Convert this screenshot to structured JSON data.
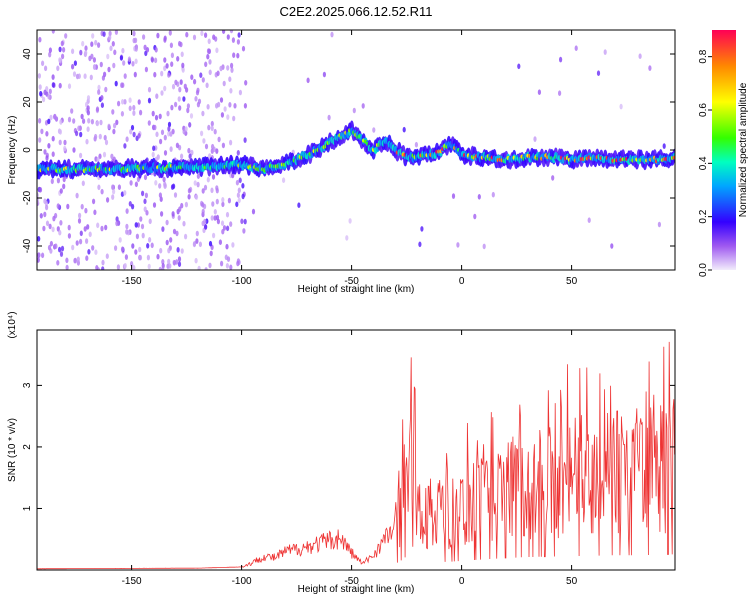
{
  "title": "C2E2.2025.066.12.52.R11",
  "colors": {
    "snr_line": "#ee3333",
    "axis": "#000000",
    "background": "#ffffff"
  },
  "chart_data": [
    {
      "type": "heatmap",
      "xlabel": "Height of straight line (km)",
      "ylabel": "Frequency (Hz)",
      "xlim": [
        -193,
        97
      ],
      "ylim": [
        -50,
        50
      ],
      "xticks": [
        -150,
        -100,
        -50,
        0,
        50
      ],
      "yticks": [
        -40,
        -20,
        0,
        20,
        40
      ],
      "colorbar": {
        "label": "Normalized spectral amplitude",
        "range": [
          0,
          0.9
        ],
        "ticks": [
          "0.0",
          "0.2",
          "0.4",
          "0.6",
          "0.8"
        ]
      },
      "ridge": {
        "x": [
          -193,
          -160,
          -120,
          -100,
          -90,
          -80,
          -70,
          -60,
          -50,
          -45,
          -40,
          -35,
          -30,
          -25,
          -20,
          -15,
          -10,
          -5,
          0,
          10,
          20,
          30,
          40,
          50,
          60,
          70,
          80,
          90,
          97
        ],
        "y": [
          -8,
          -8,
          -7,
          -6,
          -8,
          -6,
          -2,
          3,
          8,
          4,
          0,
          4,
          0,
          -3,
          -3,
          -2,
          -1,
          3,
          -2,
          -3,
          -4,
          -3,
          -3,
          -4,
          -3,
          -4,
          -4,
          -4,
          -3
        ]
      }
    },
    {
      "type": "line",
      "xlabel": "Height of straight line (km)",
      "ylabel": "SNR (10 * v/v)",
      "exponent_label": "(x10⁴)",
      "xlim": [
        -193,
        97
      ],
      "ylim": [
        0,
        3.9
      ],
      "xticks": [
        -150,
        -100,
        -50,
        0,
        50
      ],
      "yticks": [
        1,
        2,
        3
      ],
      "series": [
        {
          "x": [
            -193,
            -120,
            -100,
            -95,
            -90,
            -85,
            -80,
            -70,
            -60,
            -55,
            -50,
            -45,
            -40,
            -35,
            -30,
            -27,
            -25,
            -22,
            -20,
            -15,
            -10,
            -5,
            0,
            10,
            20,
            30,
            40,
            50,
            60,
            70,
            80,
            90,
            97
          ],
          "y": [
            0.02,
            0.03,
            0.05,
            0.12,
            0.22,
            0.2,
            0.3,
            0.38,
            0.48,
            0.52,
            0.28,
            0.1,
            0.25,
            0.5,
            0.7,
            1.1,
            1.5,
            2.6,
            1.0,
            0.9,
            0.85,
            0.9,
            1.0,
            1.15,
            1.3,
            1.4,
            1.45,
            1.5,
            1.55,
            1.6,
            1.6,
            1.65,
            1.7
          ]
        }
      ]
    }
  ]
}
